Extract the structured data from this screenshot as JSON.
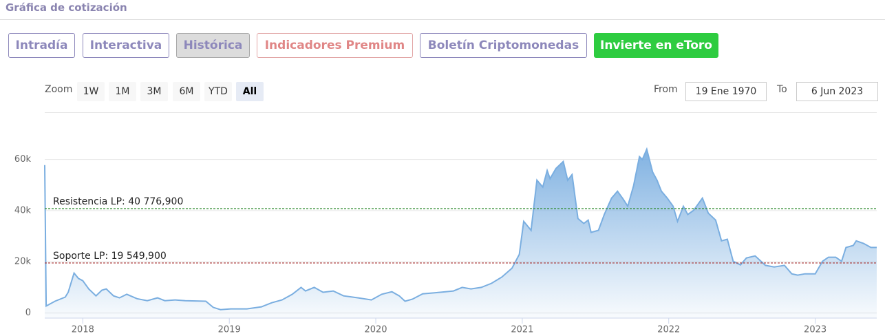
{
  "header": {
    "title": "Gráfica de cotización"
  },
  "tabs": [
    "Intradía",
    "Interactiva",
    "Histórica",
    "Indicadores Premium",
    "Boletín Criptomonedas",
    "Invierte en eToro"
  ],
  "zoom": {
    "label": "Zoom",
    "buttons": [
      "1W",
      "1M",
      "3M",
      "6M",
      "YTD",
      "All"
    ]
  },
  "range": {
    "from_label": "From",
    "from": "19 Ene 1970",
    "to_label": "To",
    "to": "6 Jun 2023"
  },
  "chart_data": {
    "type": "area",
    "color": "#7aaee0",
    "x": [
      2017.74,
      2017.75,
      2017.81,
      2017.88,
      2017.9,
      2017.94,
      2017.97,
      2018.0,
      2018.04,
      2018.09,
      2018.13,
      2018.16,
      2018.21,
      2018.25,
      2018.3,
      2018.37,
      2018.44,
      2018.51,
      2018.56,
      2018.63,
      2018.7,
      2018.84,
      2018.89,
      2018.94,
      2019.01,
      2019.12,
      2019.22,
      2019.29,
      2019.36,
      2019.43,
      2019.49,
      2019.52,
      2019.58,
      2019.64,
      2019.71,
      2019.78,
      2019.88,
      2019.97,
      2020.04,
      2020.11,
      2020.16,
      2020.2,
      2020.25,
      2020.32,
      2020.44,
      2020.53,
      2020.59,
      2020.65,
      2020.72,
      2020.79,
      2020.86,
      2020.93,
      2020.98,
      2021.01,
      2021.06,
      2021.1,
      2021.14,
      2021.17,
      2021.19,
      2021.23,
      2021.28,
      2021.31,
      2021.34,
      2021.38,
      2021.42,
      2021.45,
      2021.47,
      2021.52,
      2021.56,
      2021.61,
      2021.65,
      2021.69,
      2021.72,
      2021.76,
      2021.8,
      2021.82,
      2021.85,
      2021.89,
      2021.92,
      2021.95,
      2021.99,
      2022.03,
      2022.06,
      2022.1,
      2022.13,
      2022.17,
      2022.23,
      2022.27,
      2022.32,
      2022.36,
      2022.4,
      2022.44,
      2022.49,
      2022.53,
      2022.59,
      2022.63,
      2022.66,
      2022.72,
      2022.79,
      2022.84,
      2022.88,
      2022.93,
      2023.0,
      2023.05,
      2023.09,
      2023.14,
      2023.18,
      2023.21,
      2023.26,
      2023.28,
      2023.33,
      2023.38,
      2023.42
    ],
    "values": [
      57800,
      2700,
      4600,
      6200,
      8100,
      15600,
      13500,
      12600,
      9400,
      6700,
      8900,
      9400,
      6700,
      5900,
      7300,
      5600,
      4800,
      5900,
      4800,
      5100,
      4800,
      4600,
      2200,
      1300,
      1600,
      1600,
      2400,
      4000,
      5100,
      7300,
      10000,
      8600,
      10000,
      8100,
      8600,
      6700,
      5900,
      5100,
      7300,
      8300,
      6700,
      4600,
      5400,
      7500,
      8100,
      8600,
      10000,
      9400,
      10000,
      11600,
      14000,
      17500,
      22900,
      35800,
      32300,
      51900,
      49200,
      55700,
      52500,
      56500,
      59200,
      51900,
      54100,
      36900,
      35000,
      36300,
      31500,
      32300,
      38500,
      44900,
      47600,
      44400,
      41700,
      49800,
      61100,
      60000,
      64000,
      55100,
      51900,
      47600,
      44900,
      41700,
      35800,
      41700,
      38500,
      40100,
      44900,
      39000,
      36300,
      28200,
      28800,
      20200,
      18800,
      21500,
      22300,
      20200,
      18600,
      18000,
      18600,
      15300,
      14800,
      15300,
      15300,
      20200,
      21800,
      21800,
      20200,
      25600,
      26400,
      28200,
      27200,
      25600,
      25600
    ],
    "xlim": [
      2017.74,
      2023.42
    ],
    "xticks": [
      2018,
      2019,
      2020,
      2021,
      2022,
      2023
    ],
    "ylim": [
      -2000,
      68500
    ],
    "yticks": [
      0,
      {
        "value": 20000,
        "label": "20k"
      },
      {
        "value": 40000,
        "label": "40k"
      },
      {
        "value": 60000,
        "label": "60k"
      }
    ],
    "grid": true,
    "reference_lines": [
      {
        "label": "Resistencia LP: 40 776,900",
        "value": 40776.9,
        "color": "#2e8b2e"
      },
      {
        "label": "Soporte LP: 19 549,900",
        "value": 19549.9,
        "color": "#a83232"
      }
    ]
  }
}
